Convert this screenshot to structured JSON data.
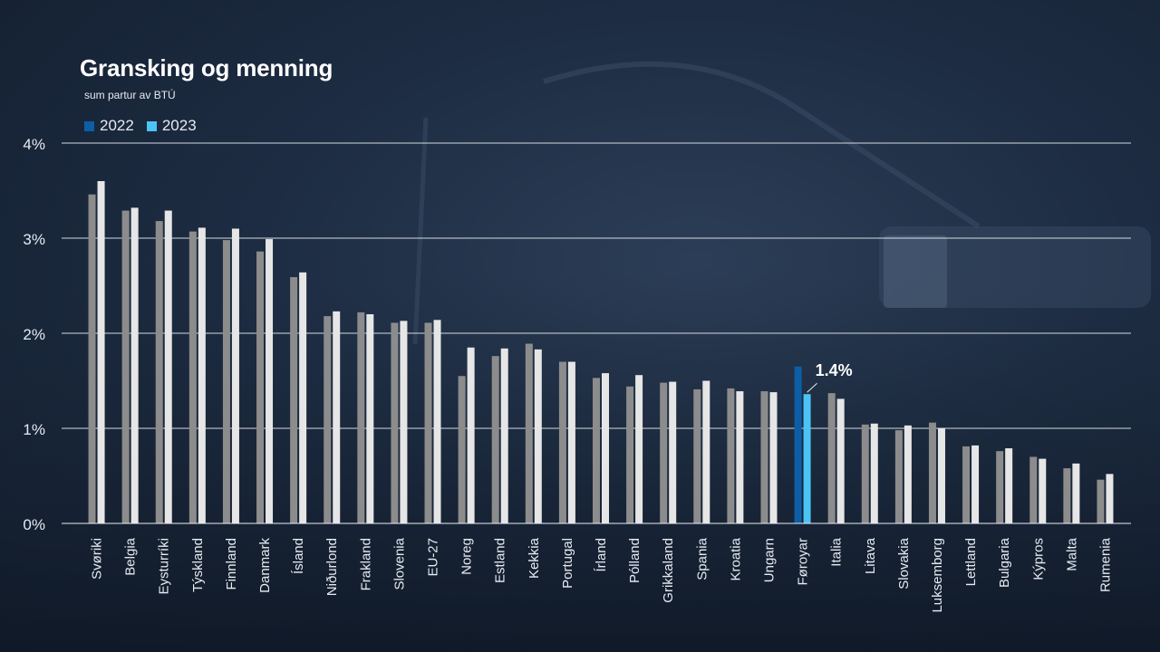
{
  "chart_data": {
    "type": "bar",
    "title": "Gransking og menning",
    "subtitle": "sum partur av BTÚ",
    "ylim": [
      0,
      4
    ],
    "yticks": [
      0,
      1,
      2,
      3,
      4
    ],
    "ytick_labels": [
      "0%",
      "1%",
      "2%",
      "3%",
      "4%"
    ],
    "grid": true,
    "legend_position": "top-left",
    "categories": [
      "Svøriki",
      "Belgia",
      "Eysturríki",
      "Týskland",
      "Finnland",
      "Danmark",
      "Ísland",
      "Niðurlond",
      "Frakland",
      "Slovenia",
      "EU-27",
      "Noreg",
      "Estland",
      "Kekkia",
      "Portugal",
      "Írland",
      "Pólland",
      "Grikkaland",
      "Spania",
      "Kroatia",
      "Ungarn",
      "Føroyar",
      "Italia",
      "Litava",
      "Slovakia",
      "Luksemborg",
      "Lettland",
      "Bulgaria",
      "Kýpros",
      "Malta",
      "Rumenia"
    ],
    "series": [
      {
        "name": "2022",
        "values": [
          3.46,
          3.29,
          3.18,
          3.07,
          2.98,
          2.86,
          2.59,
          2.18,
          2.22,
          2.11,
          2.11,
          1.55,
          1.76,
          1.89,
          1.7,
          1.53,
          1.44,
          1.48,
          1.41,
          1.42,
          1.39,
          1.65,
          1.37,
          1.04,
          0.98,
          1.06,
          0.81,
          0.76,
          0.7,
          0.58,
          0.46
        ]
      },
      {
        "name": "2023",
        "values": [
          3.6,
          3.32,
          3.29,
          3.11,
          3.1,
          2.99,
          2.64,
          2.23,
          2.2,
          2.13,
          2.14,
          1.85,
          1.84,
          1.83,
          1.7,
          1.58,
          1.56,
          1.49,
          1.5,
          1.39,
          1.38,
          1.36,
          1.31,
          1.05,
          1.03,
          1.0,
          0.82,
          0.79,
          0.68,
          0.63,
          0.52
        ]
      }
    ],
    "highlight": {
      "category": "Føroyar",
      "label": "1.4%"
    }
  },
  "colors": {
    "series_2022": "#8c8c8c",
    "series_2023": "#e6e6e6",
    "highlight_2022": "#0d5ea6",
    "highlight_2023": "#4cc3f5",
    "legend_2022": "#0d5ea6",
    "legend_2023": "#4cc3f5",
    "grid": "#e8edf3",
    "text": "#e6ebf2"
  }
}
